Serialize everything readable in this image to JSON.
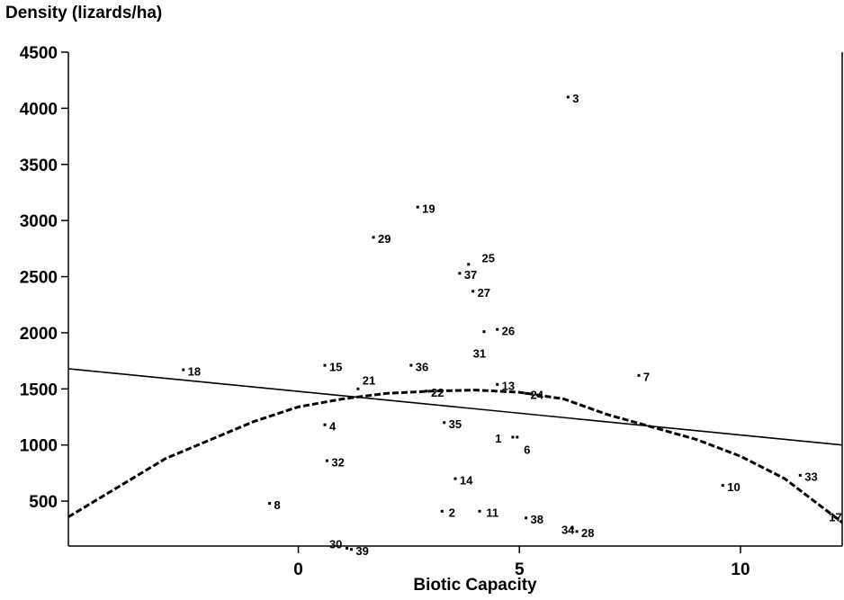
{
  "chart_data": {
    "type": "scatter",
    "xlabel": "Biotic Capacity",
    "ylabel": "Density (lizards/ha)",
    "xlim": [
      -5.2,
      12.3
    ],
    "ylim": [
      100,
      4500
    ],
    "xticks": [
      0,
      5,
      10
    ],
    "xtick_labels": [
      "0",
      "5",
      "10"
    ],
    "yticks": [
      500,
      1000,
      1500,
      2000,
      2500,
      3000,
      3500,
      4000,
      4500
    ],
    "ytick_labels": [
      "500",
      "1000",
      "1500",
      "2000",
      "2500",
      "3000",
      "3500",
      "4000",
      "4500"
    ],
    "points": [
      {
        "label": "1",
        "x": 4.85,
        "y": 1070,
        "lx": 4.45,
        "ly": 1060
      },
      {
        "label": "2",
        "x": 3.25,
        "y": 410,
        "lx": 3.4,
        "ly": 400
      },
      {
        "label": "3",
        "x": 6.1,
        "y": 4100,
        "lx": 6.2,
        "ly": 4090
      },
      {
        "label": "4",
        "x": 0.6,
        "y": 1180,
        "lx": 0.7,
        "ly": 1170
      },
      {
        "label": "6",
        "x": 4.95,
        "y": 1070,
        "lx": 5.1,
        "ly": 960
      },
      {
        "label": "7",
        "x": 7.7,
        "y": 1620,
        "lx": 7.8,
        "ly": 1610
      },
      {
        "label": "8",
        "x": -0.65,
        "y": 480,
        "lx": -0.55,
        "ly": 470
      },
      {
        "label": "10",
        "x": 9.6,
        "y": 640,
        "lx": 9.7,
        "ly": 630
      },
      {
        "label": "11",
        "x": 4.1,
        "y": 410,
        "lx": 4.25,
        "ly": 400
      },
      {
        "label": "13",
        "x": 4.5,
        "y": 1540,
        "lx": 4.6,
        "ly": 1530
      },
      {
        "label": "14",
        "x": 3.55,
        "y": 700,
        "lx": 3.65,
        "ly": 690
      },
      {
        "label": "15",
        "x": 0.6,
        "y": 1710,
        "lx": 0.7,
        "ly": 1700
      },
      {
        "label": "17",
        "x": 12.1,
        "y": 370,
        "lx": 12.0,
        "ly": 360
      },
      {
        "label": "18",
        "x": -2.6,
        "y": 1670,
        "lx": -2.5,
        "ly": 1660
      },
      {
        "label": "19",
        "x": 2.7,
        "y": 3120,
        "lx": 2.8,
        "ly": 3110
      },
      {
        "label": "21",
        "x": 1.35,
        "y": 1500,
        "lx": 1.45,
        "ly": 1580
      },
      {
        "label": "22",
        "x": 2.9,
        "y": 1480,
        "lx": 3.0,
        "ly": 1470
      },
      {
        "label": "24",
        "x": 5.15,
        "y": 1460,
        "lx": 5.25,
        "ly": 1450
      },
      {
        "label": "25",
        "x": 3.85,
        "y": 2610,
        "lx": 4.15,
        "ly": 2670
      },
      {
        "label": "26",
        "x": 4.5,
        "y": 2030,
        "lx": 4.6,
        "ly": 2020
      },
      {
        "label": "27",
        "x": 3.95,
        "y": 2370,
        "lx": 4.05,
        "ly": 2360
      },
      {
        "label": "28",
        "x": 6.3,
        "y": 230,
        "lx": 6.4,
        "ly": 220
      },
      {
        "label": "29",
        "x": 1.7,
        "y": 2850,
        "lx": 1.8,
        "ly": 2840
      },
      {
        "label": "30",
        "x": 1.1,
        "y": 80,
        "lx": 0.7,
        "ly": 120
      },
      {
        "label": "31",
        "x": 4.2,
        "y": 2010,
        "lx": 3.95,
        "ly": 1820
      },
      {
        "label": "32",
        "x": 0.65,
        "y": 860,
        "lx": 0.75,
        "ly": 850
      },
      {
        "label": "33",
        "x": 11.35,
        "y": 730,
        "lx": 11.45,
        "ly": 720
      },
      {
        "label": "34",
        "x": 6.2,
        "y": 260,
        "lx": 5.95,
        "ly": 250
      },
      {
        "label": "35",
        "x": 3.3,
        "y": 1200,
        "lx": 3.4,
        "ly": 1190
      },
      {
        "label": "36",
        "x": 2.55,
        "y": 1710,
        "lx": 2.65,
        "ly": 1700
      },
      {
        "label": "37",
        "x": 3.65,
        "y": 2530,
        "lx": 3.75,
        "ly": 2520
      },
      {
        "label": "38",
        "x": 5.15,
        "y": 350,
        "lx": 5.25,
        "ly": 340
      },
      {
        "label": "39",
        "x": 1.2,
        "y": 70,
        "lx": 1.3,
        "ly": 60
      }
    ],
    "series": [
      {
        "kind": "linear-fit",
        "style": "solid",
        "points": [
          [
            -5.2,
            1680
          ],
          [
            12.3,
            1000
          ]
        ]
      },
      {
        "kind": "quadratic-fit",
        "style": "dashed",
        "points": [
          [
            -5.2,
            360
          ],
          [
            -3.0,
            880
          ],
          [
            -1.0,
            1210
          ],
          [
            0.0,
            1340
          ],
          [
            1.0,
            1410
          ],
          [
            2.0,
            1460
          ],
          [
            3.0,
            1480
          ],
          [
            4.0,
            1490
          ],
          [
            5.0,
            1470
          ],
          [
            6.0,
            1410
          ],
          [
            7.0,
            1270
          ],
          [
            8.0,
            1160
          ],
          [
            9.0,
            1050
          ],
          [
            10.0,
            900
          ],
          [
            11.0,
            700
          ],
          [
            12.3,
            310
          ]
        ]
      }
    ]
  }
}
